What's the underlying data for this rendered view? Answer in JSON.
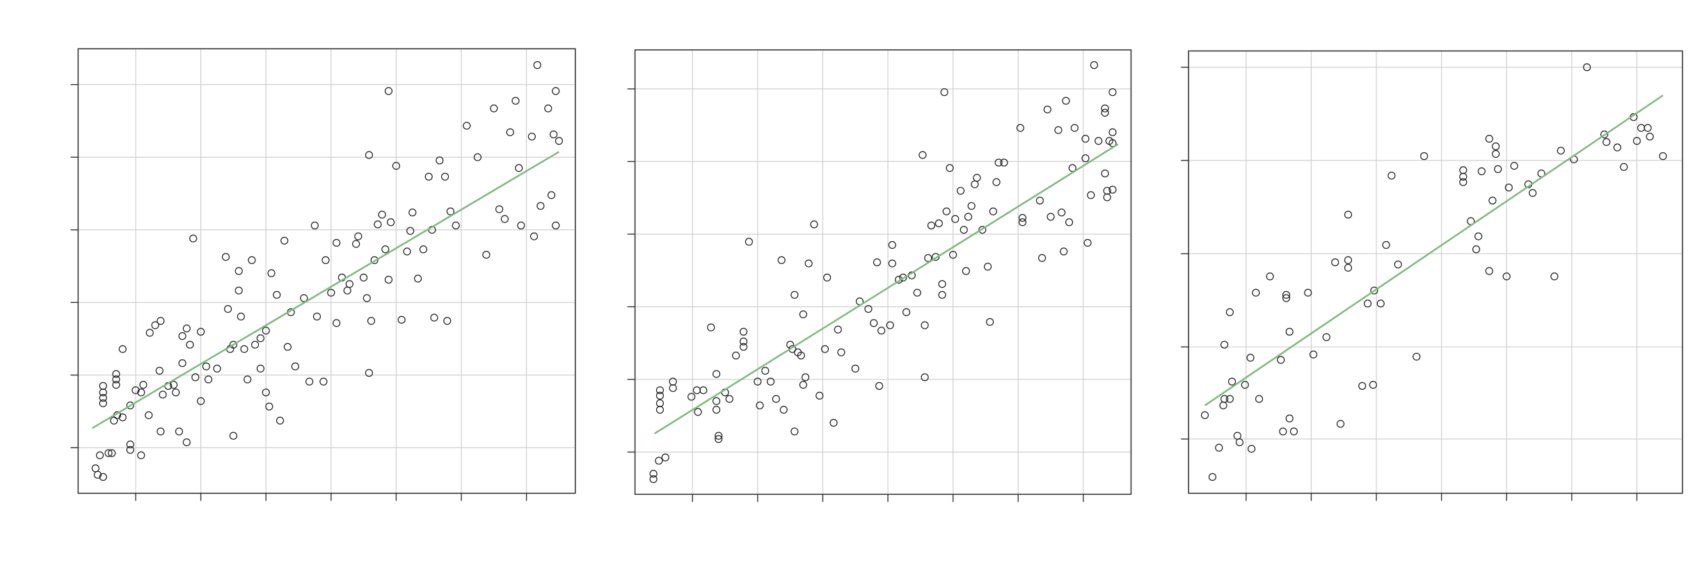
{
  "chart_data": [
    {
      "type": "scatter",
      "grid": true,
      "marker_color": "#222222",
      "xlim": [
        72,
        530
      ],
      "xticks": [
        125,
        185,
        245,
        305,
        365,
        425,
        485
      ],
      "ylim": [
        0,
        410
      ],
      "yticks": [
        42,
        109,
        176,
        243,
        310,
        377
      ],
      "fit_line": {
        "color": "#7dbb7d",
        "x": [
          85,
          515
        ],
        "y": [
          60,
          315
        ]
      },
      "x": [
        88,
        90,
        95,
        92,
        100,
        103,
        95,
        95,
        95,
        95,
        107,
        107,
        107,
        105,
        108,
        113,
        113,
        120,
        120,
        120,
        125,
        130,
        130,
        132,
        137,
        138,
        143,
        148,
        147,
        148,
        150,
        155,
        160,
        162,
        165,
        168,
        168,
        172,
        172,
        175,
        178,
        180,
        185,
        185,
        190,
        192,
        200,
        208,
        210,
        212,
        215,
        215,
        220,
        220,
        222,
        225,
        228,
        232,
        235,
        240,
        240,
        245,
        245,
        248,
        250,
        255,
        258,
        262,
        265,
        268,
        272,
        280,
        285,
        290,
        292,
        298,
        300,
        305,
        310,
        310,
        315,
        320,
        322,
        328,
        330,
        335,
        338,
        340,
        340,
        342,
        345,
        348,
        352,
        355,
        358,
        358,
        360,
        365,
        370,
        375,
        378,
        380,
        385,
        390,
        395,
        398,
        400,
        405,
        410,
        412,
        415,
        420,
        430,
        440,
        448,
        455,
        460,
        465,
        470,
        475,
        478,
        480,
        490,
        492,
        495,
        498,
        505,
        508,
        512,
        512,
        515,
        510
      ],
      "y": [
        23,
        17,
        15,
        35,
        37,
        37,
        99,
        93,
        83,
        88,
        110,
        105,
        100,
        67,
        72,
        133,
        70,
        81,
        45,
        40,
        95,
        93,
        35,
        100,
        72,
        148,
        155,
        159,
        113,
        57,
        91,
        99,
        100,
        93,
        57,
        120,
        145,
        152,
        47,
        137,
        235,
        107,
        149,
        85,
        117,
        105,
        115,
        218,
        170,
        133,
        137,
        53,
        205,
        187,
        163,
        133,
        105,
        215,
        137,
        115,
        143,
        150,
        93,
        80,
        203,
        183,
        67,
        233,
        135,
        167,
        117,
        180,
        103,
        247,
        163,
        103,
        215,
        185,
        157,
        231,
        199,
        187,
        193,
        230,
        237,
        199,
        180,
        312,
        111,
        159,
        215,
        248,
        257,
        225,
        371,
        197,
        250,
        302,
        160,
        223,
        242,
        259,
        198,
        225,
        292,
        243,
        162,
        307,
        292,
        159,
        260,
        247,
        339,
        310,
        220,
        355,
        262,
        253,
        333,
        362,
        300,
        247,
        329,
        237,
        395,
        265,
        355,
        275,
        247,
        371,
        325,
        331
      ]
    },
    {
      "type": "scatter",
      "grid": true,
      "marker_color": "#222222",
      "xlim": [
        585,
        1042
      ],
      "xticks": [
        638,
        698,
        758,
        818,
        878,
        938,
        998
      ],
      "ylim": [
        0,
        410
      ],
      "yticks": [
        39,
        106,
        173,
        240,
        307,
        374
      ],
      "fit_line": {
        "color": "#7dbb7d",
        "x": [
          603,
          1030
        ],
        "y": [
          56,
          323
        ]
      },
      "x": [
        602,
        602,
        607,
        613,
        608,
        608,
        608,
        608,
        620,
        620,
        637,
        642,
        648,
        643,
        655,
        660,
        660,
        660,
        662,
        662,
        668,
        672,
        678,
        685,
        685,
        685,
        690,
        698,
        700,
        705,
        710,
        715,
        720,
        722,
        728,
        730,
        732,
        732,
        735,
        738,
        740,
        740,
        742,
        745,
        750,
        755,
        760,
        762,
        768,
        772,
        775,
        788,
        792,
        800,
        805,
        808,
        810,
        812,
        820,
        822,
        822,
        828,
        832,
        835,
        840,
        845,
        850,
        852,
        852,
        855,
        858,
        862,
        865,
        868,
        868,
        870,
        872,
        875,
        878,
        880,
        885,
        888,
        890,
        892,
        895,
        898,
        900,
        905,
        910,
        912,
        915,
        918,
        920,
        925,
        940,
        942,
        942,
        958,
        960,
        965,
        968,
        975,
        978,
        980,
        982,
        985,
        988,
        990,
        1000,
        1000,
        1002,
        1005,
        1008,
        1012,
        1018,
        1018,
        1018,
        1020,
        1020,
        1022,
        1025,
        1025,
        1025,
        1025
      ],
      "y": [
        19,
        14,
        31,
        34,
        96,
        91,
        84,
        78,
        104,
        98,
        90,
        96,
        96,
        76,
        154,
        111,
        86,
        78,
        54,
        51,
        94,
        88,
        128,
        141,
        136,
        150,
        233,
        104,
        82,
        114,
        104,
        88,
        216,
        78,
        138,
        134,
        184,
        58,
        131,
        128,
        166,
        101,
        108,
        213,
        249,
        91,
        134,
        200,
        66,
        152,
        131,
        116,
        178,
        171,
        158,
        214,
        100,
        151,
        156,
        213,
        230,
        198,
        200,
        168,
        202,
        186,
        313,
        156,
        108,
        218,
        248,
        219,
        250,
        194,
        184,
        371,
        261,
        301,
        221,
        254,
        280,
        244,
        206,
        256,
        266,
        286,
        292,
        244,
        210,
        159,
        261,
        288,
        306,
        306,
        338,
        255,
        251,
        271,
        218,
        355,
        256,
        336,
        260,
        224,
        363,
        251,
        301,
        338,
        328,
        310,
        232,
        276,
        396,
        326,
        356,
        352,
        296,
        280,
        274,
        326,
        334,
        324,
        371,
        281
      ]
    },
    {
      "type": "scatter",
      "grid": true,
      "marker_color": "#222222",
      "xlim": [
        1095,
        1550
      ],
      "xticks": [
        1148,
        1208,
        1268,
        1328,
        1388,
        1448,
        1508
      ],
      "ylim": [
        0,
        408
      ],
      "yticks": [
        50,
        135,
        221,
        307,
        393
      ],
      "fit_line": {
        "color": "#7dbb7d",
        "x": [
          1110,
          1532
        ],
        "y": [
          81,
          367
        ]
      },
      "x": [
        1110,
        1117,
        1123,
        1127,
        1128,
        1128,
        1133,
        1133,
        1135,
        1140,
        1142,
        1147,
        1152,
        1153,
        1157,
        1160,
        1170,
        1180,
        1182,
        1185,
        1185,
        1188,
        1188,
        1192,
        1205,
        1210,
        1222,
        1230,
        1235,
        1242,
        1242,
        1242,
        1255,
        1260,
        1265,
        1266,
        1272,
        1277,
        1282,
        1288,
        1305,
        1312,
        1348,
        1348,
        1348,
        1355,
        1360,
        1362,
        1365,
        1372,
        1372,
        1375,
        1378,
        1378,
        1380,
        1388,
        1390,
        1395,
        1408,
        1412,
        1420,
        1432,
        1438,
        1450,
        1462,
        1478,
        1480,
        1490,
        1496,
        1505,
        1508,
        1512,
        1518,
        1520,
        1532
      ],
      "y": [
        72,
        15,
        42,
        81,
        87,
        137,
        167,
        87,
        103,
        53,
        47,
        100,
        125,
        41,
        185,
        87,
        200,
        123,
        57,
        183,
        180,
        149,
        69,
        57,
        185,
        128,
        144,
        213,
        64,
        257,
        215,
        208,
        99,
        175,
        100,
        187,
        175,
        229,
        293,
        211,
        126,
        311,
        298,
        292,
        287,
        251,
        225,
        237,
        297,
        327,
        205,
        270,
        320,
        313,
        299,
        200,
        282,
        302,
        285,
        277,
        295,
        200,
        316,
        308,
        393,
        331,
        324,
        319,
        301,
        347,
        325,
        337,
        337,
        329,
        311
      ]
    }
  ]
}
